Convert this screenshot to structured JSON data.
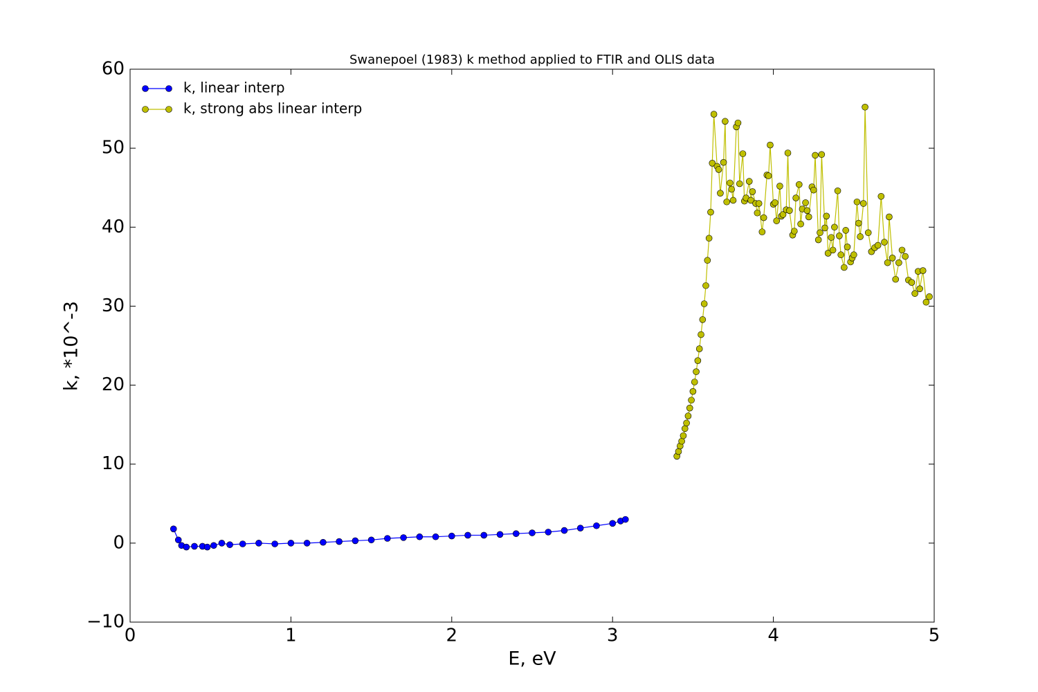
{
  "chart_data": {
    "type": "line",
    "title": "Swanepoel (1983) k method applied to FTIR and OLIS data",
    "x_label": "E, eV",
    "y_label": "k, *10^-3",
    "xlim": [
      0,
      5
    ],
    "ylim": [
      -10,
      60
    ],
    "xticks": [
      0,
      1,
      2,
      3,
      4,
      5
    ],
    "yticks": [
      {
        "value": -10,
        "label": "−10"
      },
      0,
      10,
      20,
      30,
      40,
      50,
      60
    ],
    "legend": "upper left",
    "grid": false,
    "series": [
      {
        "name": "k, linear interp",
        "color": "#0000ff",
        "x": [
          0.27,
          0.3,
          0.32,
          0.35,
          0.4,
          0.45,
          0.48,
          0.52,
          0.57,
          0.62,
          0.7,
          0.8,
          0.9,
          1.0,
          1.1,
          1.2,
          1.3,
          1.4,
          1.5,
          1.6,
          1.7,
          1.8,
          1.9,
          2.0,
          2.1,
          2.2,
          2.3,
          2.4,
          2.5,
          2.6,
          2.7,
          2.8,
          2.9,
          3.0,
          3.05,
          3.08
        ],
        "values": [
          1.8,
          0.4,
          -0.3,
          -0.5,
          -0.4,
          -0.4,
          -0.5,
          -0.3,
          0.0,
          -0.2,
          -0.1,
          0.0,
          -0.1,
          0.0,
          0.0,
          0.1,
          0.2,
          0.3,
          0.4,
          0.6,
          0.7,
          0.8,
          0.8,
          0.9,
          1.0,
          1.0,
          1.1,
          1.2,
          1.3,
          1.4,
          1.6,
          1.9,
          2.2,
          2.5,
          2.8,
          3.0
        ]
      },
      {
        "name": "k, strong abs linear interp",
        "color": "#bfbf00",
        "x": [
          3.4,
          3.41,
          3.42,
          3.43,
          3.44,
          3.45,
          3.46,
          3.47,
          3.48,
          3.49,
          3.5,
          3.51,
          3.52,
          3.53,
          3.54,
          3.55,
          3.56,
          3.57,
          3.58,
          3.59,
          3.6,
          3.61,
          3.62,
          3.63,
          3.65,
          3.66,
          3.67,
          3.69,
          3.7,
          3.71,
          3.73,
          3.74,
          3.75,
          3.77,
          3.78,
          3.79,
          3.81,
          3.82,
          3.83,
          3.85,
          3.86,
          3.87,
          3.89,
          3.9,
          3.91,
          3.93,
          3.94,
          3.96,
          3.97,
          3.98,
          4.0,
          4.01,
          4.02,
          4.04,
          4.05,
          4.06,
          4.08,
          4.09,
          4.1,
          4.12,
          4.13,
          4.14,
          4.16,
          4.17,
          4.18,
          4.2,
          4.21,
          4.22,
          4.24,
          4.25,
          4.26,
          4.28,
          4.29,
          4.3,
          4.32,
          4.33,
          4.34,
          4.36,
          4.37,
          4.38,
          4.4,
          4.41,
          4.42,
          4.44,
          4.45,
          4.46,
          4.48,
          4.49,
          4.5,
          4.52,
          4.53,
          4.54,
          4.56,
          4.57,
          4.59,
          4.61,
          4.63,
          4.65,
          4.67,
          4.69,
          4.71,
          4.72,
          4.74,
          4.76,
          4.78,
          4.8,
          4.82,
          4.84,
          4.86,
          4.88,
          4.9,
          4.91,
          4.93,
          4.95,
          4.97
        ],
        "values": [
          11.0,
          11.6,
          12.3,
          12.9,
          13.6,
          14.5,
          15.2,
          16.1,
          17.1,
          18.1,
          19.2,
          20.4,
          21.7,
          23.1,
          24.6,
          26.4,
          28.3,
          30.3,
          32.6,
          35.8,
          38.6,
          41.9,
          48.1,
          54.3,
          47.7,
          47.3,
          44.3,
          48.2,
          53.4,
          43.2,
          45.6,
          44.8,
          43.4,
          52.7,
          53.2,
          45.5,
          49.3,
          43.3,
          43.7,
          45.8,
          43.4,
          44.5,
          43.0,
          41.8,
          43.0,
          39.4,
          41.2,
          46.6,
          46.5,
          50.4,
          42.9,
          43.1,
          40.8,
          45.2,
          41.4,
          41.6,
          42.2,
          49.4,
          42.1,
          39.0,
          39.5,
          43.7,
          45.4,
          40.4,
          42.3,
          43.1,
          42.1,
          41.3,
          45.1,
          44.7,
          49.1,
          38.4,
          39.3,
          49.2,
          39.9,
          41.4,
          36.7,
          38.7,
          37.1,
          40.0,
          44.6,
          38.9,
          36.5,
          34.9,
          39.6,
          37.5,
          35.6,
          36.1,
          36.5,
          43.2,
          40.5,
          38.8,
          43.0,
          55.2,
          39.3,
          36.9,
          37.4,
          37.7,
          43.9,
          38.1,
          35.5,
          41.3,
          36.1,
          33.4,
          35.5,
          37.1,
          36.3,
          33.3,
          33.0,
          31.6,
          34.4,
          32.2,
          34.5,
          30.5,
          31.2
        ]
      }
    ]
  }
}
